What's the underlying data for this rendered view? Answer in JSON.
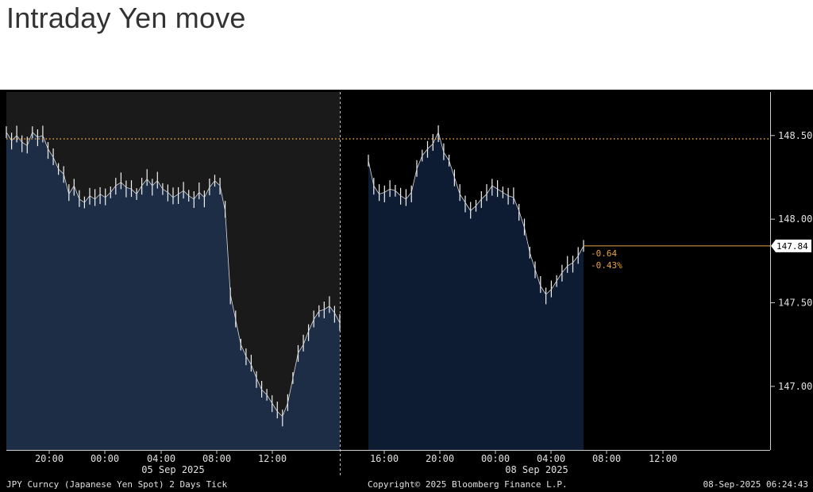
{
  "title": "Intraday Yen move",
  "chart_data": {
    "type": "area",
    "instrument": "JPY Curncy (Japanese Yen Spot) 2 Days  Tick",
    "copyright": "Copyright© 2025 Bloomberg Finance L.P.",
    "timestamp": "08-Sep-2025 06:24:43",
    "y_ticks": [
      {
        "value": 148.5,
        "label": "148.50"
      },
      {
        "value": 148.0,
        "label": "148.00"
      },
      {
        "value": 147.5,
        "label": "147.50"
      },
      {
        "value": 147.0,
        "label": "147.00"
      }
    ],
    "ylim": [
      146.62,
      148.76
    ],
    "reference_level": {
      "value": 148.48
    },
    "last_price": {
      "value": 147.84,
      "label": "147.84",
      "change": "-0.64",
      "change_pct": "-0.43%"
    },
    "sessions": [
      {
        "date_label": "05 Sep 2025",
        "time_ticks": [
          "20:00",
          "00:00",
          "04:00",
          "08:00",
          "12:00"
        ],
        "series": [
          148.52,
          148.47,
          148.5,
          148.46,
          148.44,
          148.52,
          148.49,
          148.5,
          148.42,
          148.37,
          148.3,
          148.27,
          148.15,
          148.2,
          148.12,
          148.1,
          148.14,
          148.12,
          148.15,
          148.13,
          148.16,
          148.2,
          148.22,
          148.19,
          148.18,
          148.15,
          148.2,
          148.24,
          148.2,
          148.23,
          148.18,
          148.16,
          148.13,
          148.15,
          148.17,
          148.14,
          148.12,
          148.16,
          148.13,
          148.19,
          148.23,
          148.2,
          148.05,
          147.55,
          147.4,
          147.25,
          147.18,
          147.13,
          147.05,
          146.98,
          146.95,
          146.9,
          146.85,
          146.82,
          146.9,
          147.05,
          147.2,
          147.25,
          147.33,
          147.4,
          147.45,
          147.46,
          147.48,
          147.44,
          147.38
        ]
      },
      {
        "date_label": "08 Sep 2025",
        "time_ticks": [
          "16:00",
          "20:00",
          "00:00",
          "04:00",
          "08:00",
          "12:00"
        ],
        "series": [
          148.35,
          148.2,
          148.15,
          148.16,
          148.18,
          148.17,
          148.14,
          148.12,
          148.16,
          148.3,
          148.38,
          148.42,
          148.45,
          148.52,
          148.4,
          148.35,
          148.25,
          148.15,
          148.1,
          148.05,
          148.08,
          148.12,
          148.15,
          148.2,
          148.18,
          148.16,
          148.14,
          148.13,
          148.05,
          147.95,
          147.8,
          147.7,
          147.6,
          147.55,
          147.58,
          147.63,
          147.68,
          147.72,
          147.74,
          147.78,
          147.84
        ]
      }
    ]
  }
}
